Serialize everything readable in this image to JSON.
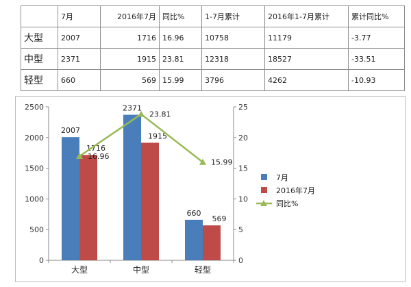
{
  "table": {
    "headers": [
      "",
      "7月",
      "2016年7月",
      "同比%",
      "1-7月累计",
      "2016年1-7月累计",
      "累计同比%"
    ],
    "rows": [
      [
        "大型",
        "2007",
        "1716",
        "16.96",
        "10758",
        "11179",
        "-3.77"
      ],
      [
        "中型",
        "2371",
        "1915",
        "23.81",
        "12318",
        "18527",
        "-33.51"
      ],
      [
        "轻型",
        "660",
        "569",
        "15.99",
        "3796",
        "4262",
        "-10.93"
      ]
    ]
  },
  "chart_data": {
    "type": "bar",
    "categories": [
      "大型",
      "中型",
      "轻型"
    ],
    "series": [
      {
        "name": "7月",
        "kind": "bar",
        "axis": "left",
        "color": "#4a7ebb",
        "values": [
          2007,
          2371,
          660
        ]
      },
      {
        "name": "2016年7月",
        "kind": "bar",
        "axis": "left",
        "color": "#be4b48",
        "values": [
          1716,
          1915,
          569
        ]
      },
      {
        "name": "同比%",
        "kind": "line",
        "axis": "right",
        "color": "#98b954",
        "marker": "triangle",
        "values": [
          16.96,
          23.81,
          15.99
        ]
      }
    ],
    "ylim": [
      0,
      2500
    ],
    "yticks": [
      0,
      500,
      1000,
      1500,
      2000,
      2500
    ],
    "y2lim": [
      0,
      25
    ],
    "y2ticks": [
      0,
      5,
      10,
      15,
      20,
      25
    ],
    "legend": "right",
    "grid": false
  }
}
